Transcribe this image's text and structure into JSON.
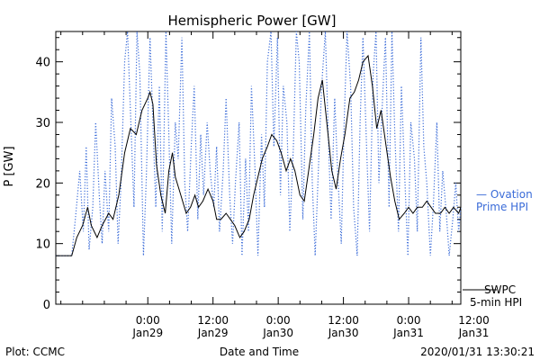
{
  "chart_data": {
    "type": "line",
    "title": "Hemispheric Power [GW]",
    "xlabel": "Date and Time",
    "ylabel": "P [GW]",
    "ylim": [
      0,
      45
    ],
    "xlim": [
      -12.7,
      43.2
    ],
    "x_unit": "hours after 2020-01-29 00:00",
    "yticks": [
      0,
      10,
      20,
      30,
      40
    ],
    "xticks": [
      {
        "x": 0,
        "line1": "0:00",
        "line2": "Jan29"
      },
      {
        "x": 9,
        "line1": "12:00",
        "line2": "Jan29"
      },
      {
        "x": 18,
        "line1": "0:00",
        "line2": "Jan30"
      },
      {
        "x": 27,
        "line1": "12:00",
        "line2": "Jan30"
      },
      {
        "x": 36,
        "line1": "0:00",
        "line2": "Jan31"
      },
      {
        "x": 45,
        "line1": "12:00",
        "line2": "Jan31"
      }
    ],
    "grid": false,
    "series": [
      {
        "name": "SWPC 5-min HPI",
        "label_lines": [
          "SWPC",
          "5-min HPI"
        ],
        "color": "#000000",
        "style": "solid",
        "x": [
          -12.7,
          -10.5,
          -9.8,
          -9.0,
          -8.3,
          -7.8,
          -7.0,
          -6.3,
          -5.4,
          -4.8,
          -4.0,
          -3.2,
          -2.4,
          -1.6,
          -0.8,
          0.0,
          0.3,
          0.7,
          1.2,
          1.8,
          2.4,
          2.9,
          3.4,
          3.8,
          4.3,
          4.8,
          5.3,
          5.9,
          6.5,
          7.0,
          7.6,
          8.3,
          9.0,
          9.5,
          10.1,
          10.8,
          11.4,
          12.0,
          12.7,
          13.3,
          14.0,
          14.6,
          15.2,
          15.8,
          16.5,
          17.1,
          17.8,
          18.4,
          19.1,
          19.7,
          20.3,
          21.0,
          21.6,
          22.2,
          22.9,
          23.5,
          24.1,
          24.7,
          25.4,
          26.0,
          26.6,
          27.2,
          27.9,
          28.5,
          29.1,
          29.7,
          30.4,
          31.0,
          31.6,
          32.2,
          32.9,
          33.5,
          34.1,
          34.7,
          35.4,
          36.0,
          36.6,
          37.2,
          37.9,
          38.5,
          39.1,
          39.7,
          40.4,
          41.0,
          41.6,
          42.2,
          42.9,
          43.2
        ],
        "y": [
          8,
          8,
          11,
          13,
          16,
          13,
          11,
          13,
          15,
          14,
          18,
          25,
          29,
          28,
          32,
          34,
          35,
          33,
          23,
          18,
          15,
          22,
          25,
          21,
          19,
          17,
          15,
          16,
          18,
          16,
          17,
          19,
          17,
          14,
          14,
          15,
          14,
          13,
          11,
          12,
          14,
          18,
          21,
          24,
          26,
          28,
          27,
          25,
          22,
          24,
          22,
          18,
          17,
          22,
          28,
          34,
          37,
          30,
          22,
          19,
          24,
          28,
          34,
          35,
          37,
          40,
          41,
          36,
          29,
          32,
          26,
          21,
          17,
          14,
          15,
          16,
          15,
          16,
          16,
          17,
          16,
          15,
          15,
          16,
          15,
          16,
          15,
          16
        ]
      },
      {
        "name": "Ovation Prime HPI",
        "label_lines": [
          "— Ovation",
          "Prime HPI"
        ],
        "color": "#3a6bd8",
        "style": "dotted",
        "x": [
          -12.7,
          -10.5,
          -10.0,
          -9.4,
          -8.9,
          -8.5,
          -8.1,
          -7.6,
          -7.2,
          -6.7,
          -6.3,
          -5.9,
          -5.4,
          -5.0,
          -4.5,
          -4.1,
          -3.7,
          -3.2,
          -2.8,
          -2.4,
          -1.9,
          -1.5,
          -1.1,
          -0.6,
          -0.2,
          0.3,
          0.7,
          1.1,
          1.6,
          2.0,
          2.5,
          2.9,
          3.3,
          3.8,
          4.2,
          4.7,
          5.1,
          5.5,
          6.0,
          6.4,
          6.9,
          7.3,
          7.7,
          8.2,
          8.6,
          9.1,
          9.5,
          9.9,
          10.4,
          10.8,
          11.3,
          11.7,
          12.1,
          12.6,
          13.0,
          13.5,
          13.9,
          14.3,
          14.8,
          15.2,
          15.7,
          16.1,
          16.5,
          17.0,
          17.4,
          17.9,
          18.3,
          18.7,
          19.2,
          19.6,
          20.1,
          20.5,
          20.9,
          21.4,
          21.8,
          22.3,
          22.7,
          23.1,
          23.6,
          24.0,
          24.5,
          24.9,
          25.3,
          25.8,
          26.2,
          26.7,
          27.1,
          27.5,
          28.0,
          28.4,
          28.9,
          29.3,
          29.7,
          30.2,
          30.6,
          31.1,
          31.5,
          31.9,
          32.4,
          32.8,
          33.3,
          33.7,
          34.1,
          34.6,
          35.0,
          35.5,
          35.9,
          36.3,
          36.8,
          37.2,
          37.7,
          38.1,
          38.5,
          39.0,
          39.4,
          39.9,
          40.3,
          40.7,
          41.2,
          41.6,
          42.1,
          42.5,
          42.9,
          43.2
        ],
        "y": [
          8,
          8,
          14,
          22,
          12,
          26,
          9,
          16,
          30,
          18,
          10,
          22,
          12,
          34,
          26,
          10,
          20,
          40,
          45,
          32,
          16,
          45,
          38,
          8,
          21,
          44,
          30,
          16,
          36,
          12,
          45,
          28,
          10,
          30,
          24,
          44,
          20,
          12,
          26,
          36,
          14,
          28,
          18,
          30,
          22,
          16,
          26,
          12,
          22,
          34,
          18,
          10,
          20,
          30,
          8,
          24,
          12,
          36,
          22,
          8,
          28,
          16,
          40,
          45,
          26,
          44,
          18,
          36,
          30,
          12,
          26,
          45,
          40,
          14,
          32,
          45,
          20,
          8,
          24,
          36,
          45,
          28,
          14,
          34,
          22,
          10,
          30,
          45,
          36,
          16,
          8,
          30,
          44,
          26,
          12,
          38,
          45,
          20,
          34,
          44,
          16,
          45,
          28,
          12,
          36,
          20,
          8,
          30,
          24,
          12,
          44,
          26,
          20,
          8,
          16,
          30,
          12,
          22,
          15,
          8,
          14,
          20,
          12,
          16
        ]
      }
    ]
  },
  "footer": {
    "left": "Plot: CCMC",
    "center": "Date and Time",
    "right": "2020/01/31  13:30:21"
  }
}
